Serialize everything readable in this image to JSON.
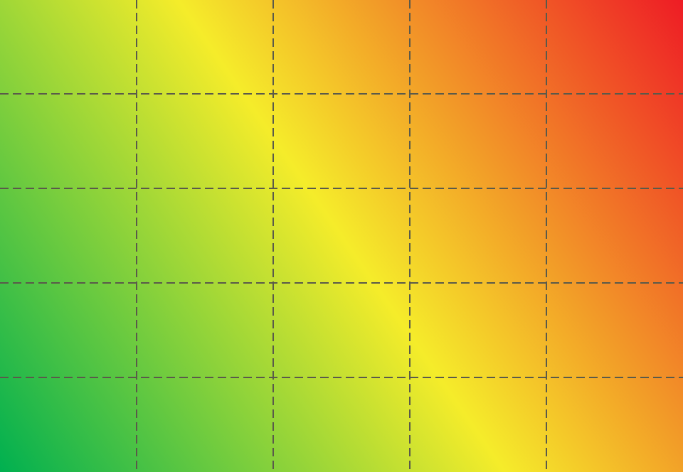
{
  "chart_data": {
    "type": "heatmap",
    "rows": 5,
    "cols": 5,
    "grid": true,
    "grid_style": "dashed",
    "colors": {
      "low": "#00b050",
      "mid": "#f5ec2a",
      "high": "#ee1c25",
      "grid_line": "#5a5a4a"
    },
    "color_stops": [
      {
        "offset": 0.0,
        "color": "#00b050"
      },
      {
        "offset": 0.5,
        "color": "#f5ec2a"
      },
      {
        "offset": 1.0,
        "color": "#ee1c25"
      }
    ]
  }
}
